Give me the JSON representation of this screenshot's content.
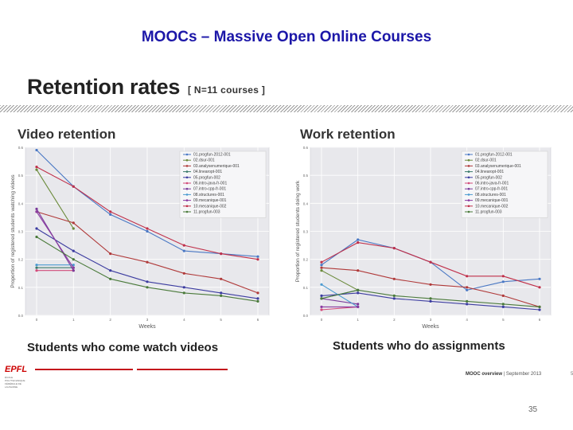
{
  "slide": {
    "title": "MOOCs – Massive Open Online Courses",
    "heading": "Retention rates",
    "subheading": "[ N=11 courses ]",
    "page_number": "35",
    "footer": {
      "bold": "MOOC overview",
      "rest": " | September 2013"
    },
    "footer_right": "5",
    "logo": {
      "text": "EPFL",
      "subtext": "ÉCOLE POLYTECHNIQUE FÉDÉRALE DE LAUSANNE"
    },
    "colors": {
      "title": "#1c17a8",
      "accent_red": "#c4161c"
    }
  },
  "panels": [
    {
      "title": "Video retention",
      "caption": "Students who come watch videos"
    },
    {
      "title": "Work retention",
      "caption": "Students who do assignments"
    }
  ],
  "chart_data": [
    {
      "type": "line",
      "title": "Video retention",
      "xlabel": "Weeks",
      "ylabel": "Proportion of registered students watching videos",
      "x": [
        0,
        1,
        2,
        3,
        4,
        5,
        6
      ],
      "xticks": [
        "0",
        "1",
        "2",
        "3",
        "4",
        "5",
        "6"
      ],
      "ylim": [
        0,
        0.6
      ],
      "yticks": [
        "0.0",
        "0.1",
        "0.2",
        "0.3",
        "0.4",
        "0.5",
        "0.6"
      ],
      "grid": true,
      "legend_position": "top-right",
      "series": [
        {
          "name": "01.progfun-2012-001",
          "color": "#4a78c4",
          "values": [
            0.59,
            0.46,
            0.36,
            0.3,
            0.23,
            0.22,
            0.21
          ]
        },
        {
          "name": "02.dsur-001",
          "color": "#6a8a3a",
          "values": [
            0.52,
            0.31,
            null,
            null,
            null,
            null,
            null
          ]
        },
        {
          "name": "03.analysenumerique-001",
          "color": "#b03a3a",
          "values": [
            0.37,
            0.33,
            0.22,
            0.19,
            0.15,
            0.13,
            0.08
          ]
        },
        {
          "name": "04.linearopt-001",
          "color": "#3a7a6a",
          "values": [
            0.17,
            0.17,
            null,
            null,
            null,
            null,
            null
          ]
        },
        {
          "name": "05.progfun-002",
          "color": "#3c3ca0",
          "values": [
            0.31,
            0.23,
            0.16,
            0.12,
            0.1,
            0.08,
            0.06
          ]
        },
        {
          "name": "06.intro-java-fr-001",
          "color": "#d24a7a",
          "values": [
            0.16,
            0.16,
            null,
            null,
            null,
            null,
            null
          ]
        },
        {
          "name": "07.intro-cpp-fr-001",
          "color": "#7a3a9a",
          "values": [
            0.38,
            0.16,
            null,
            null,
            null,
            null,
            null
          ]
        },
        {
          "name": "08.structures-001",
          "color": "#4a9ad0",
          "values": [
            0.18,
            0.18,
            null,
            null,
            null,
            null,
            null
          ]
        },
        {
          "name": "09.mecanique-001",
          "color": "#8a3aa0",
          "values": [
            0.37,
            0.17,
            null,
            null,
            null,
            null,
            null
          ]
        },
        {
          "name": "10.mecanique-002",
          "color": "#c0304a",
          "values": [
            0.53,
            0.46,
            0.37,
            0.31,
            0.25,
            0.22,
            0.2
          ]
        },
        {
          "name": "11.progfun-003",
          "color": "#4a7a3a",
          "values": [
            0.28,
            0.2,
            0.13,
            0.1,
            0.08,
            0.07,
            0.05
          ]
        }
      ]
    },
    {
      "type": "line",
      "title": "Work retention",
      "xlabel": "Weeks",
      "ylabel": "Proportion of registered students doing work",
      "x": [
        0,
        1,
        2,
        3,
        4,
        5,
        6
      ],
      "xticks": [
        "0",
        "1",
        "2",
        "3",
        "4",
        "5",
        "6"
      ],
      "ylim": [
        0,
        0.6
      ],
      "yticks": [
        "0.0",
        "0.1",
        "0.2",
        "0.3",
        "0.4",
        "0.5",
        "0.6"
      ],
      "grid": true,
      "legend_position": "top-right",
      "series": [
        {
          "name": "01.progfun-2012-001",
          "color": "#4a78c4",
          "values": [
            0.18,
            0.27,
            0.24,
            0.19,
            0.09,
            0.12,
            0.13
          ]
        },
        {
          "name": "02.dsur-001",
          "color": "#6a8a3a",
          "values": [
            0.16,
            0.09,
            null,
            null,
            null,
            null,
            null
          ]
        },
        {
          "name": "03.analysenumerique-001",
          "color": "#b03a3a",
          "values": [
            0.17,
            0.16,
            0.13,
            0.11,
            0.1,
            0.07,
            0.03
          ]
        },
        {
          "name": "04.linearopt-001",
          "color": "#3a7a6a",
          "values": [
            0.06,
            0.09,
            null,
            null,
            null,
            null,
            null
          ]
        },
        {
          "name": "05.progfun-002",
          "color": "#3c3ca0",
          "values": [
            0.07,
            0.08,
            0.06,
            0.05,
            0.04,
            0.03,
            0.02
          ]
        },
        {
          "name": "06.intro-java-fr-001",
          "color": "#d24a7a",
          "values": [
            0.02,
            0.03,
            null,
            null,
            null,
            null,
            null
          ]
        },
        {
          "name": "07.intro-cpp-fr-001",
          "color": "#7a3a9a",
          "values": [
            0.06,
            0.04,
            null,
            null,
            null,
            null,
            null
          ]
        },
        {
          "name": "08.structures-001",
          "color": "#4a9ad0",
          "values": [
            0.11,
            0.03,
            null,
            null,
            null,
            null,
            null
          ]
        },
        {
          "name": "09.mecanique-001",
          "color": "#8a3aa0",
          "values": [
            0.03,
            0.03,
            null,
            null,
            null,
            null,
            null
          ]
        },
        {
          "name": "10.mecanique-002",
          "color": "#c0304a",
          "values": [
            0.19,
            0.26,
            0.24,
            0.19,
            0.14,
            0.14,
            0.1
          ]
        },
        {
          "name": "11.progfun-003",
          "color": "#4a7a3a",
          "values": [
            0.06,
            0.09,
            0.07,
            0.06,
            0.05,
            0.04,
            0.03
          ]
        }
      ]
    }
  ]
}
